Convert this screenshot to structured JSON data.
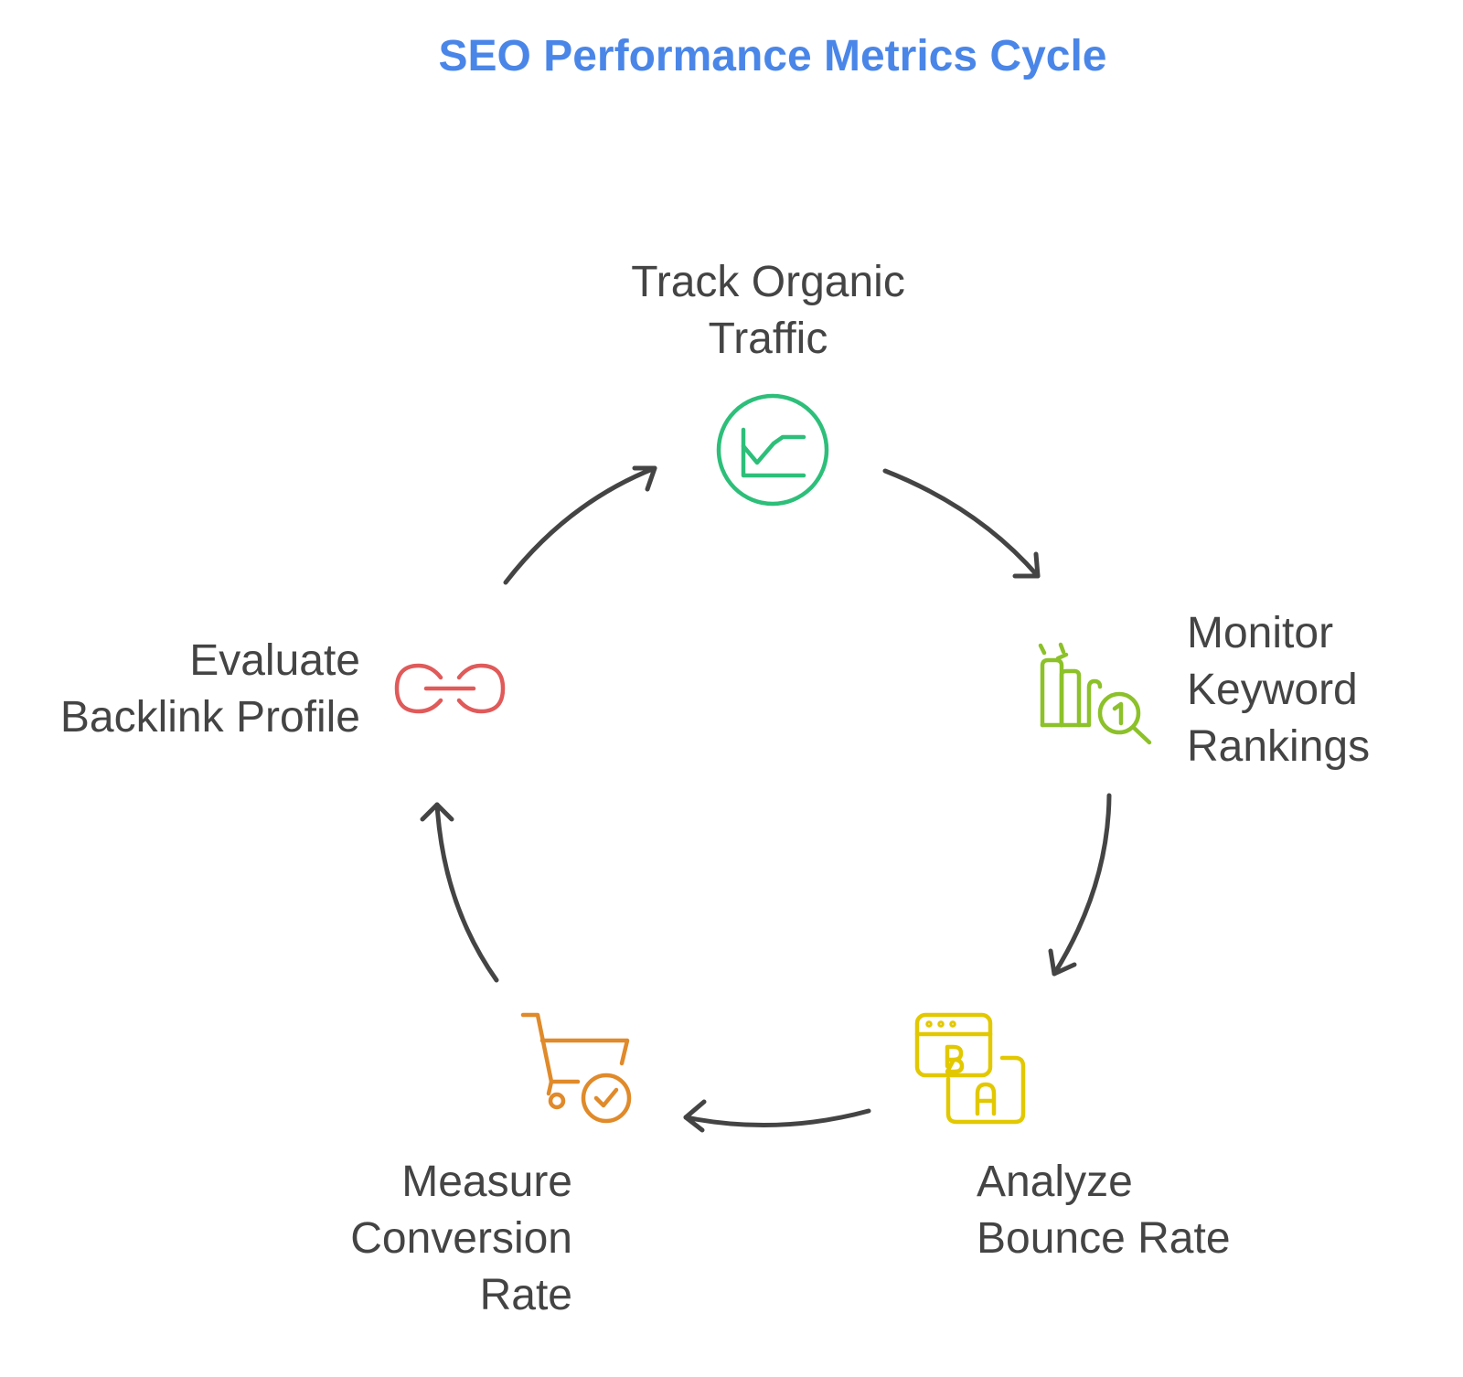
{
  "title": "SEO Performance Metrics Cycle",
  "steps": [
    {
      "label": "Track Organic\nTraffic",
      "icon": "line-chart-icon",
      "color": "#2dbf7a"
    },
    {
      "label": "Monitor\nKeyword\nRankings",
      "icon": "ranking-search-icon",
      "color": "#8cc12a"
    },
    {
      "label": "Analyze\nBounce Rate",
      "icon": "ab-test-icon",
      "color": "#e2c800"
    },
    {
      "label": "Measure\nConversion\nRate",
      "icon": "cart-check-icon",
      "color": "#e08a2a"
    },
    {
      "label": "Evaluate\nBacklink Profile",
      "icon": "link-icon",
      "color": "#e05a5a"
    }
  ],
  "arrow_color": "#444444"
}
